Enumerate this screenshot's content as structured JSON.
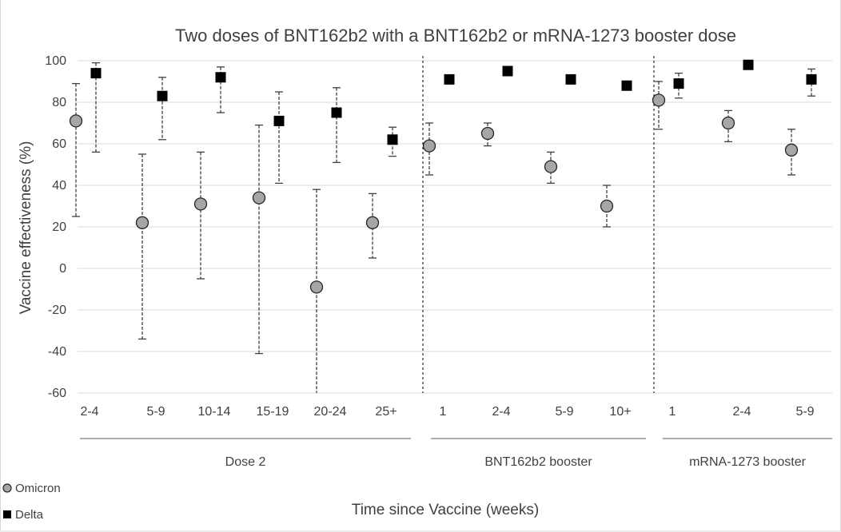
{
  "chart_data": {
    "type": "scatter",
    "title": "Two doses of BNT162b2 with a BNT162b2 or mRNA-1273 booster dose",
    "xlabel": "Time since Vaccine (weeks)",
    "ylabel": "Vaccine effectiveness (%)",
    "ylim": [
      -60,
      100
    ],
    "yticks": [
      -60,
      -40,
      -20,
      0,
      20,
      40,
      60,
      80,
      100
    ],
    "grid": true,
    "legend_position": "bottom-left",
    "categories": [
      "2-4",
      "5-9",
      "10-14",
      "15-19",
      "20-24",
      "25+",
      "1",
      "2-4",
      "5-9",
      "10+",
      "1",
      "2-4",
      "5-9"
    ],
    "groups": [
      {
        "label": "Dose 2",
        "start": 0,
        "end": 5
      },
      {
        "label": "BNT162b2 booster",
        "start": 6,
        "end": 9
      },
      {
        "label": "mRNA-1273 booster",
        "start": 10,
        "end": 12
      }
    ],
    "series": [
      {
        "name": "Omicron",
        "marker": "circle",
        "color": "#a6a6a6",
        "values": [
          71,
          22,
          31,
          34,
          -9,
          22,
          59,
          65,
          49,
          30,
          81,
          70,
          57
        ],
        "lower": [
          25,
          -34,
          -5,
          -41,
          -60,
          5,
          45,
          59,
          41,
          20,
          67,
          61,
          45
        ],
        "upper": [
          89,
          55,
          56,
          69,
          38,
          36,
          70,
          70,
          56,
          40,
          90,
          76,
          67
        ]
      },
      {
        "name": "Delta",
        "marker": "square",
        "color": "#000000",
        "values": [
          94,
          83,
          92,
          71,
          75,
          62,
          91,
          95,
          91,
          88,
          89,
          98,
          91
        ],
        "lower": [
          56,
          62,
          75,
          41,
          51,
          54,
          89,
          95,
          91,
          88,
          82,
          96,
          83
        ],
        "upper": [
          99,
          92,
          97,
          85,
          87,
          68,
          93,
          96,
          92,
          89,
          94,
          99,
          96
        ]
      }
    ]
  }
}
